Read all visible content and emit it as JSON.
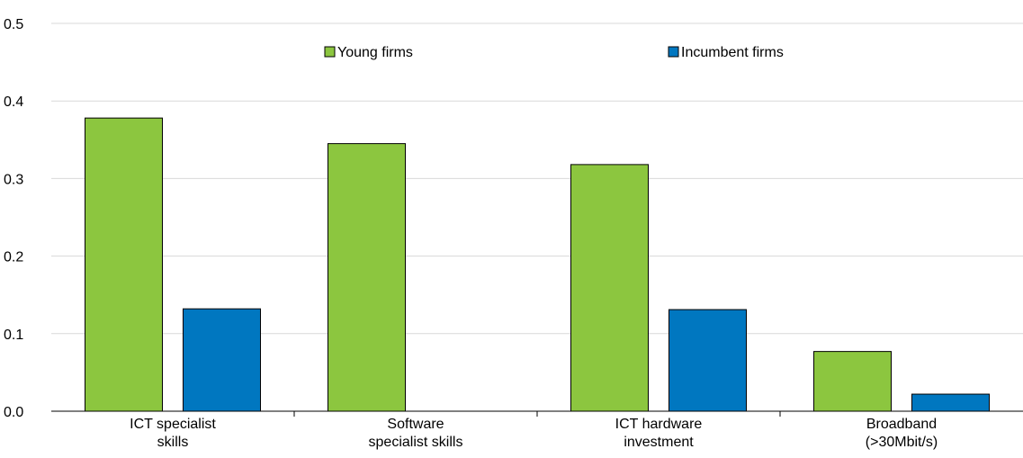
{
  "chart_data": {
    "type": "bar",
    "categories": [
      [
        "ICT specialist",
        "skills"
      ],
      [
        "Software",
        "specialist skills"
      ],
      [
        "ICT hardware",
        "investment"
      ],
      [
        "Broadband",
        "(>30Mbit/s)"
      ]
    ],
    "series": [
      {
        "name": "Young firms",
        "color": "#8cc63f",
        "values": [
          0.378,
          0.345,
          0.318,
          0.077
        ]
      },
      {
        "name": "Incumbent firms",
        "color": "#0077c0",
        "values": [
          0.132,
          null,
          0.131,
          0.022
        ]
      }
    ],
    "ylim": [
      0,
      0.5
    ],
    "yticks": [
      "0.0",
      "0.1",
      "0.2",
      "0.3",
      "0.4",
      "0.5"
    ],
    "ytick_values": [
      0,
      0.1,
      0.2,
      0.3,
      0.4,
      0.5
    ],
    "grid": true,
    "legend_position": "top-center",
    "title": "",
    "xlabel": "",
    "ylabel": ""
  }
}
